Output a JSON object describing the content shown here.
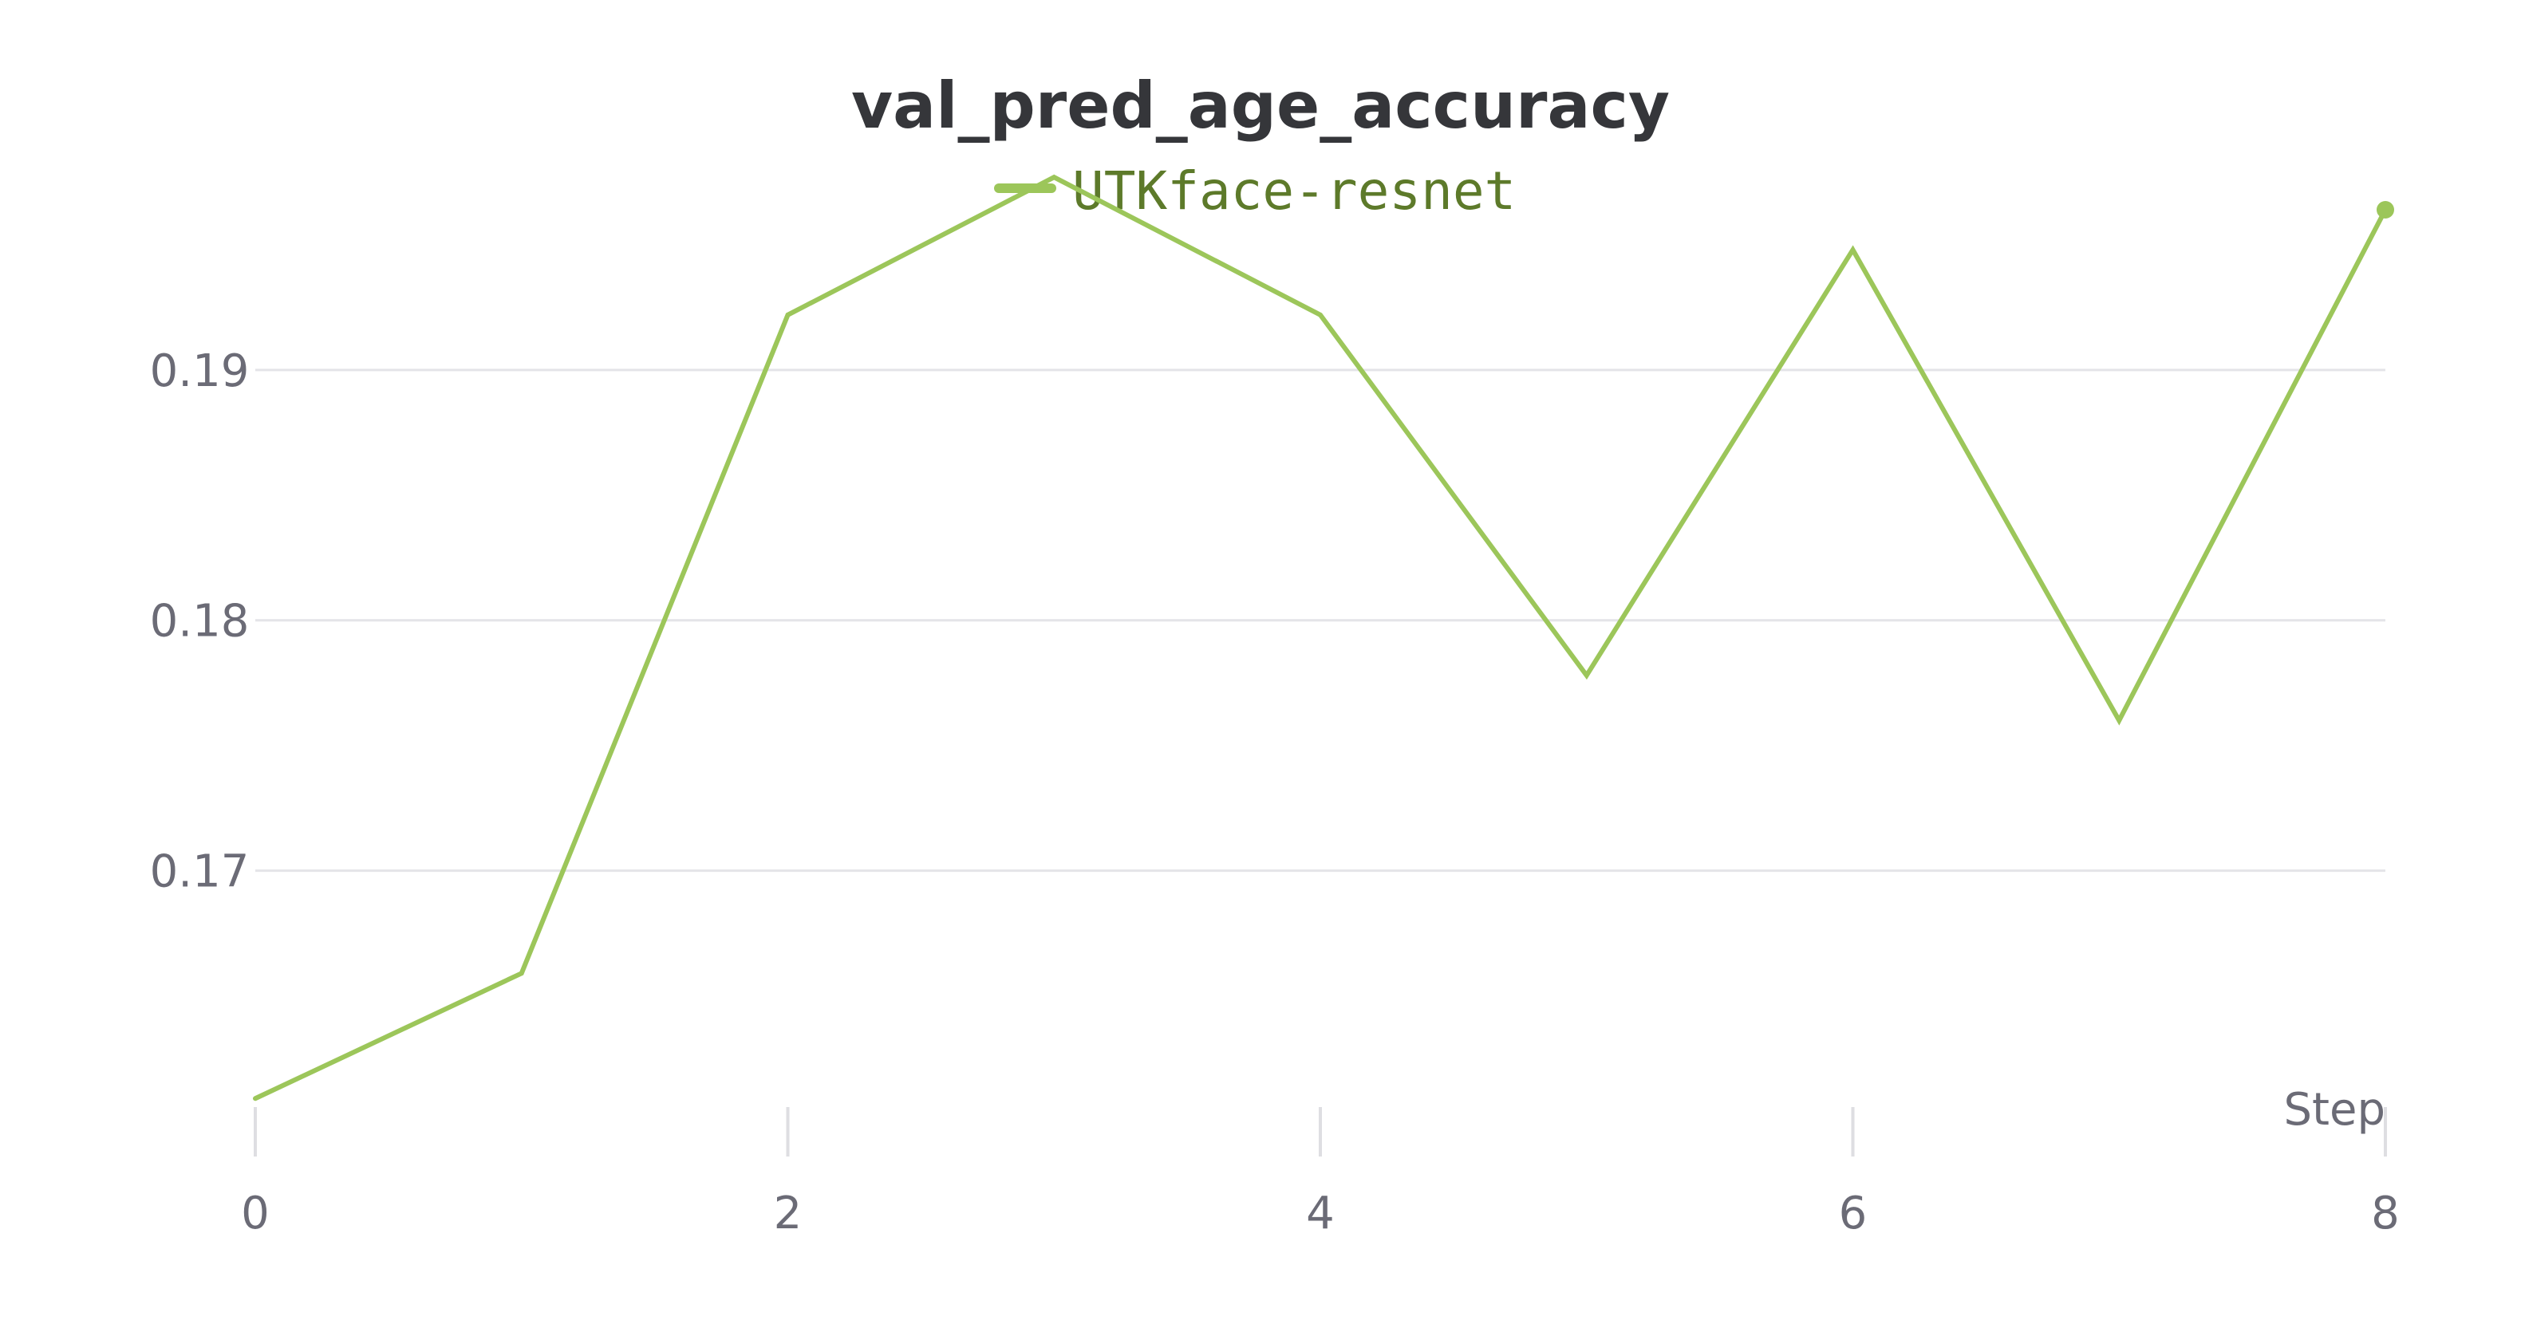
{
  "chart_data": {
    "type": "line",
    "title": "val_pred_age_accuracy",
    "xlabel": "Step",
    "ylabel": "",
    "x": [
      0,
      1,
      2,
      3,
      4,
      5,
      6,
      7,
      8
    ],
    "series": [
      {
        "name": "UTKface-resnet",
        "color": "#9cc65a",
        "values": [
          0.1609,
          0.1659,
          0.1922,
          0.1977,
          0.1922,
          0.1778,
          0.1948,
          0.176,
          0.1964
        ]
      }
    ],
    "xlim": [
      0,
      8
    ],
    "ylim": [
      0.1589,
      0.2
    ],
    "xticks": [
      0,
      2,
      4,
      6,
      8
    ],
    "xtick_labels": [
      "0",
      "2",
      "4",
      "6",
      "8"
    ],
    "yticks": [
      0.17,
      0.18,
      0.19
    ],
    "ytick_labels": [
      "0.17",
      "0.18",
      "0.19"
    ],
    "grid": true,
    "legend_position": "top-center",
    "last_point_marker": true
  }
}
